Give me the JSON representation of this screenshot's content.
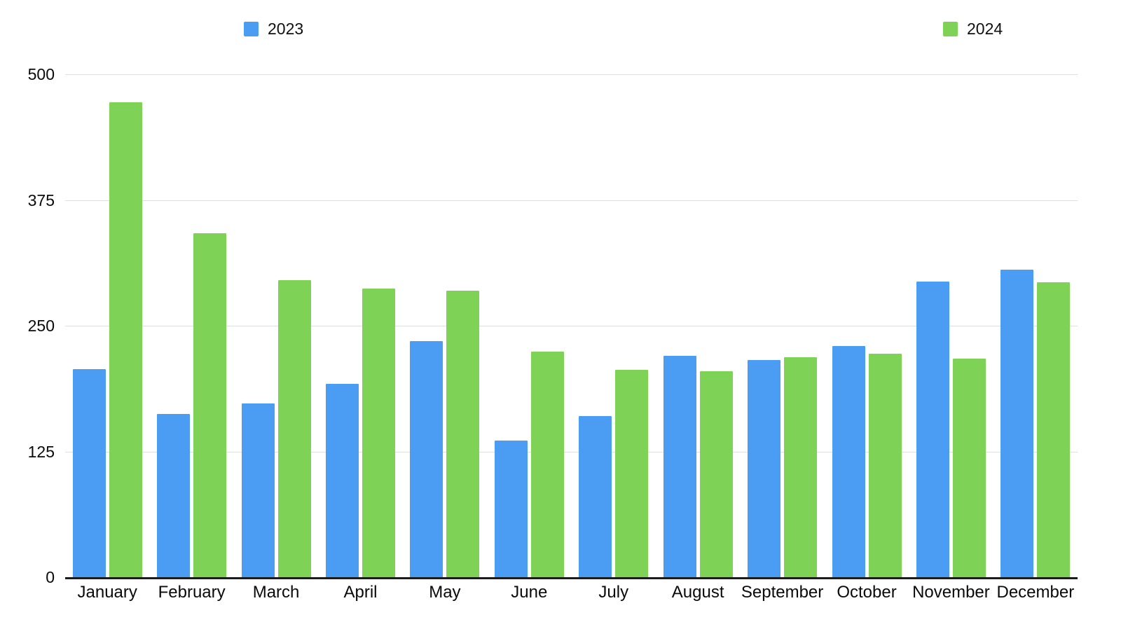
{
  "chart_data": {
    "type": "bar",
    "title": "",
    "xlabel": "",
    "ylabel": "",
    "categories": [
      "January",
      "February",
      "March",
      "April",
      "May",
      "June",
      "July",
      "August",
      "September",
      "October",
      "November",
      "December"
    ],
    "series": [
      {
        "name": "2023",
        "color": "#4a9df3",
        "values": [
          207,
          162,
          173,
          192,
          235,
          136,
          160,
          220,
          216,
          230,
          294,
          306
        ]
      },
      {
        "name": "2024",
        "color": "#7ed357",
        "values": [
          472,
          342,
          295,
          287,
          285,
          224,
          206,
          205,
          219,
          222,
          217,
          293
        ]
      }
    ],
    "ylim": [
      0,
      500
    ],
    "yticks": [
      0,
      125,
      250,
      375,
      500
    ],
    "grid": true,
    "legend_position": "top"
  },
  "legend": {
    "items": [
      {
        "label": "2023",
        "color": "#4a9df3"
      },
      {
        "label": "2024",
        "color": "#7ed357"
      }
    ]
  },
  "colors": {
    "background": "#ffffff",
    "gridline": "#dedede",
    "axis_line": "#1c1c1c",
    "text": "#0a0a0a",
    "series_2023": "#4a9df3",
    "series_2024": "#7ed357"
  }
}
